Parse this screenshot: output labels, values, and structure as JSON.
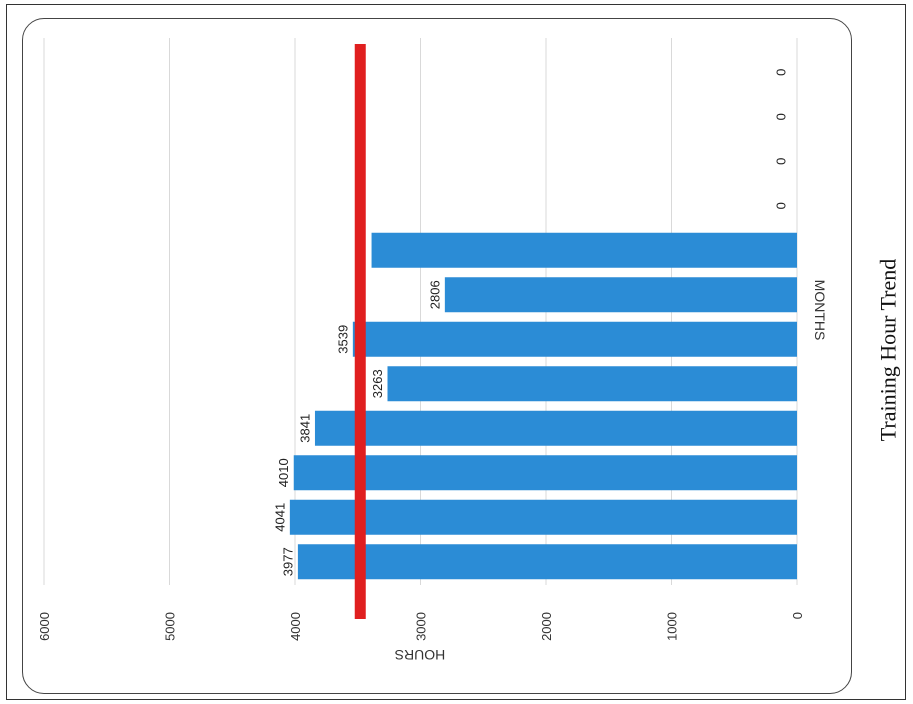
{
  "chart_data": {
    "type": "bar",
    "orientation": "horizontal-bars-rotated-page",
    "title": "Training Hour Trend",
    "xlabel": "MONTHS",
    "ylabel": "HOURS",
    "ylim": [
      0,
      6000
    ],
    "yticks": [
      "0",
      "1000",
      "2000",
      "3000",
      "4000",
      "5000",
      "6000"
    ],
    "values": [
      3977,
      4041,
      4010,
      3841,
      3263,
      3539,
      2806,
      3390,
      0,
      0,
      0,
      0
    ],
    "data_labels": [
      "3977",
      "4041",
      "4010",
      "3841",
      "3263",
      "3539",
      "2806",
      "",
      "0",
      "0",
      "0",
      "0"
    ],
    "target_line": 3500,
    "colors": {
      "bar": "#2b8cd6",
      "target": "#e01f1f",
      "grid": "#d9d9d9"
    },
    "grid": true
  }
}
